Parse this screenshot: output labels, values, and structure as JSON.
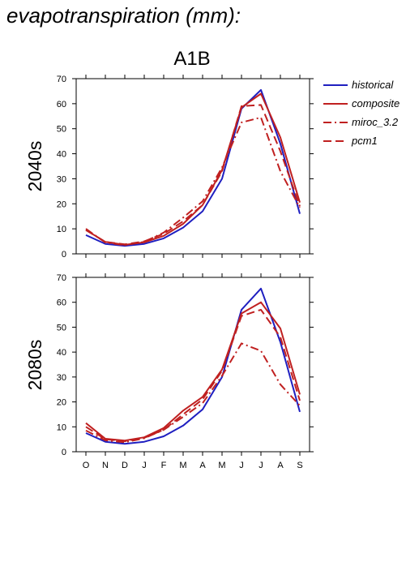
{
  "figure_title": "evapotranspiration (mm):",
  "colors": {
    "historical": "#1f1fc0",
    "composite": "#c02020",
    "miroc_3.2": "#c02020",
    "pcm1": "#c02020",
    "axis": "#000000"
  },
  "chart_data": [
    {
      "type": "line",
      "title": "A1B",
      "ylabel": "2040s",
      "xlabel": "",
      "categories": [
        "O",
        "N",
        "D",
        "J",
        "F",
        "M",
        "A",
        "M",
        "J",
        "J",
        "A",
        "S"
      ],
      "ylim": [
        0,
        70
      ],
      "yticks": [
        0,
        10,
        20,
        30,
        40,
        50,
        60,
        70
      ],
      "grid": false,
      "legend": "right",
      "series": [
        {
          "name": "historical",
          "style": "solid",
          "values": [
            7.5,
            4,
            3.2,
            4,
            6.2,
            10.5,
            17,
            30,
            58,
            65.5,
            44,
            16
          ]
        },
        {
          "name": "composite",
          "style": "solid",
          "values": [
            9.5,
            4.8,
            3.6,
            4.6,
            7.2,
            12,
            19.5,
            33.5,
            58.5,
            64,
            46.5,
            20.5
          ]
        },
        {
          "name": "miroc_3.2",
          "style": "dashdot",
          "values": [
            10,
            4.5,
            3.5,
            4.8,
            8.5,
            14.5,
            21,
            34.5,
            52.5,
            54.5,
            33,
            18.5
          ]
        },
        {
          "name": "pcm1",
          "style": "dashed",
          "values": [
            9.5,
            4.8,
            3.8,
            5,
            8,
            13,
            19.5,
            33,
            59,
            59.5,
            41,
            19
          ]
        }
      ]
    },
    {
      "type": "line",
      "title": "",
      "ylabel": "2080s",
      "xlabel": "",
      "categories": [
        "O",
        "N",
        "D",
        "J",
        "F",
        "M",
        "A",
        "M",
        "J",
        "J",
        "A",
        "S"
      ],
      "ylim": [
        0,
        70
      ],
      "yticks": [
        0,
        10,
        20,
        30,
        40,
        50,
        60,
        70
      ],
      "grid": false,
      "series": [
        {
          "name": "historical",
          "style": "solid",
          "values": [
            7.5,
            4,
            3.2,
            4,
            6.2,
            10.5,
            17,
            30,
            57,
            65.5,
            44,
            16
          ]
        },
        {
          "name": "composite",
          "style": "solid",
          "values": [
            11.5,
            5.2,
            4.5,
            5.8,
            9.5,
            16.5,
            22,
            33,
            55.5,
            60,
            49.5,
            23
          ]
        },
        {
          "name": "miroc_3.2",
          "style": "dashdot",
          "values": [
            8.5,
            4.6,
            3.8,
            5.4,
            8.8,
            14,
            19.5,
            30.5,
            43.5,
            40.5,
            27,
            18.5
          ]
        },
        {
          "name": "pcm1",
          "style": "dashed",
          "values": [
            10,
            5,
            4.2,
            5.6,
            8.8,
            15,
            21,
            32.5,
            54.5,
            57,
            46,
            20.5
          ]
        }
      ]
    }
  ]
}
